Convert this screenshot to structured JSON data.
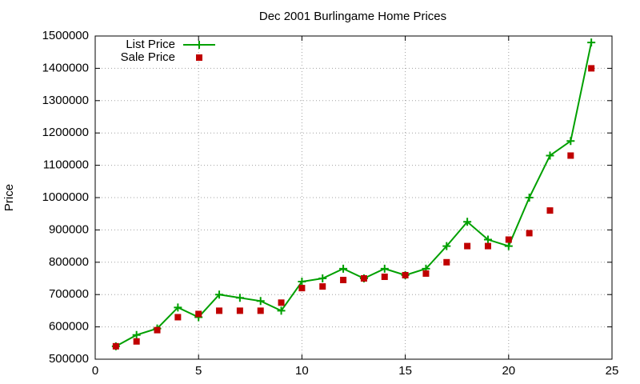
{
  "chart_data": {
    "type": "line",
    "title": "Dec 2001 Burlingame Home Prices",
    "y_label": "Price",
    "x": [
      1,
      2,
      3,
      4,
      5,
      6,
      7,
      8,
      9,
      10,
      11,
      12,
      13,
      14,
      15,
      16,
      17,
      18,
      19,
      20,
      21,
      22,
      23,
      24
    ],
    "series": [
      {
        "name": "List Price",
        "color": "#00a000",
        "values": [
          540000,
          575000,
          595000,
          660000,
          630000,
          700000,
          690000,
          680000,
          650000,
          740000,
          750000,
          780000,
          750000,
          780000,
          760000,
          780000,
          850000,
          925000,
          870000,
          850000,
          1000000,
          1130000,
          1175000,
          1480000
        ]
      },
      {
        "name": "Sale Price",
        "color": "#c00000",
        "values": [
          540000,
          555000,
          590000,
          630000,
          640000,
          650000,
          650000,
          650000,
          675000,
          720000,
          725000,
          745000,
          750000,
          755000,
          760000,
          765000,
          800000,
          850000,
          850000,
          870000,
          890000,
          960000,
          1130000,
          1400000
        ]
      }
    ],
    "xlim": [
      0,
      25
    ],
    "xticks": [
      0,
      5,
      10,
      15,
      20,
      25
    ],
    "ylim": [
      500000,
      1500000
    ],
    "yticks": [
      500000,
      600000,
      700000,
      800000,
      900000,
      1000000,
      1100000,
      1200000,
      1300000,
      1400000,
      1500000
    ],
    "grid": true,
    "legend": "top-left"
  }
}
